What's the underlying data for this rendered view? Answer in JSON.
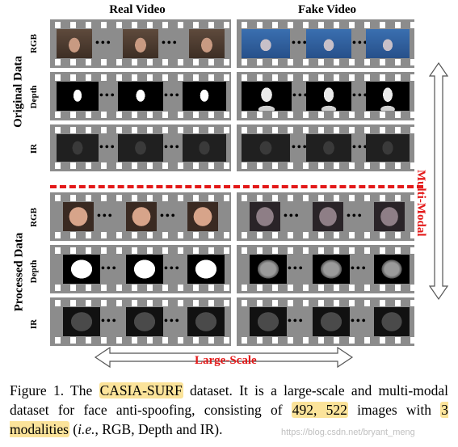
{
  "figure": {
    "col_real": "Real Video",
    "col_fake": "Fake Video",
    "group_original": "Original Data",
    "group_processed": "Processed Data",
    "row_labels": [
      "RGB",
      "Depth",
      "IR",
      "RGB",
      "Depth",
      "IR"
    ],
    "ellipsis": "•••",
    "multi_modal": "Multi-Modal",
    "large_scale": "Large-Scale",
    "colors": {
      "accent": "#e31919",
      "highlight": "#fbe39a",
      "film": "#8c8c8c"
    }
  },
  "caption": {
    "prefix": "Figure 1. The ",
    "dataset": "CASIA-SURF",
    "mid1": " dataset. It is a large-scale and multi-modal dataset for face anti-spoofing, consisting of ",
    "count": "492, 522",
    "mid2": " images with ",
    "modalities": "3 modalities",
    "mid3": " (",
    "ie": "i.e.",
    "end": ", RGB, Depth and IR)."
  },
  "watermark": "https://blog.csdn.net/bryant_meng"
}
